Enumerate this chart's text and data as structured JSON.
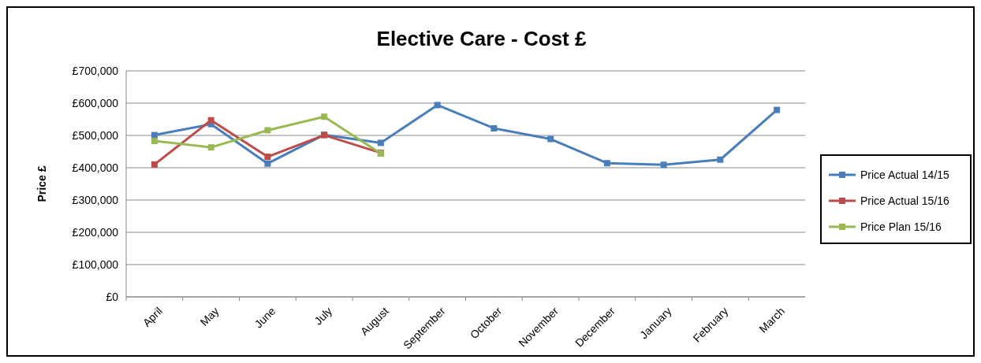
{
  "chart_data": {
    "type": "line",
    "title": "Elective Care - Cost £",
    "ylabel": "Price £",
    "categories": [
      "April",
      "May",
      "June",
      "July",
      "August",
      "September",
      "October",
      "November",
      "December",
      "January",
      "February",
      "March"
    ],
    "series": [
      {
        "name": "Price Actual 14/15",
        "color": "#4a7ebb",
        "values": [
          501000,
          535000,
          413000,
          502000,
          477000,
          594000,
          522000,
          489000,
          414000,
          409000,
          425000,
          579000
        ]
      },
      {
        "name": "Price Actual 15/16",
        "color": "#be4b48",
        "values": [
          410000,
          547000,
          434000,
          501000,
          446000,
          null,
          null,
          null,
          null,
          null,
          null,
          null
        ]
      },
      {
        "name": "Price Plan 15/16",
        "color": "#98b954",
        "values": [
          483000,
          463000,
          516000,
          558000,
          444000,
          null,
          null,
          null,
          null,
          null,
          null,
          null
        ]
      }
    ],
    "ylim": [
      0,
      700000
    ],
    "yticks": [
      {
        "value": 0,
        "label": "£0"
      },
      {
        "value": 100000,
        "label": "£100,000"
      },
      {
        "value": 200000,
        "label": "£200,000"
      },
      {
        "value": 300000,
        "label": "£300,000"
      },
      {
        "value": 400000,
        "label": "£400,000"
      },
      {
        "value": 500000,
        "label": "£500,000"
      },
      {
        "value": 600000,
        "label": "£600,000"
      },
      {
        "value": 700000,
        "label": "£700,000"
      }
    ],
    "grid": "y",
    "legend": "right",
    "marker": "square",
    "line_style": "solid"
  }
}
